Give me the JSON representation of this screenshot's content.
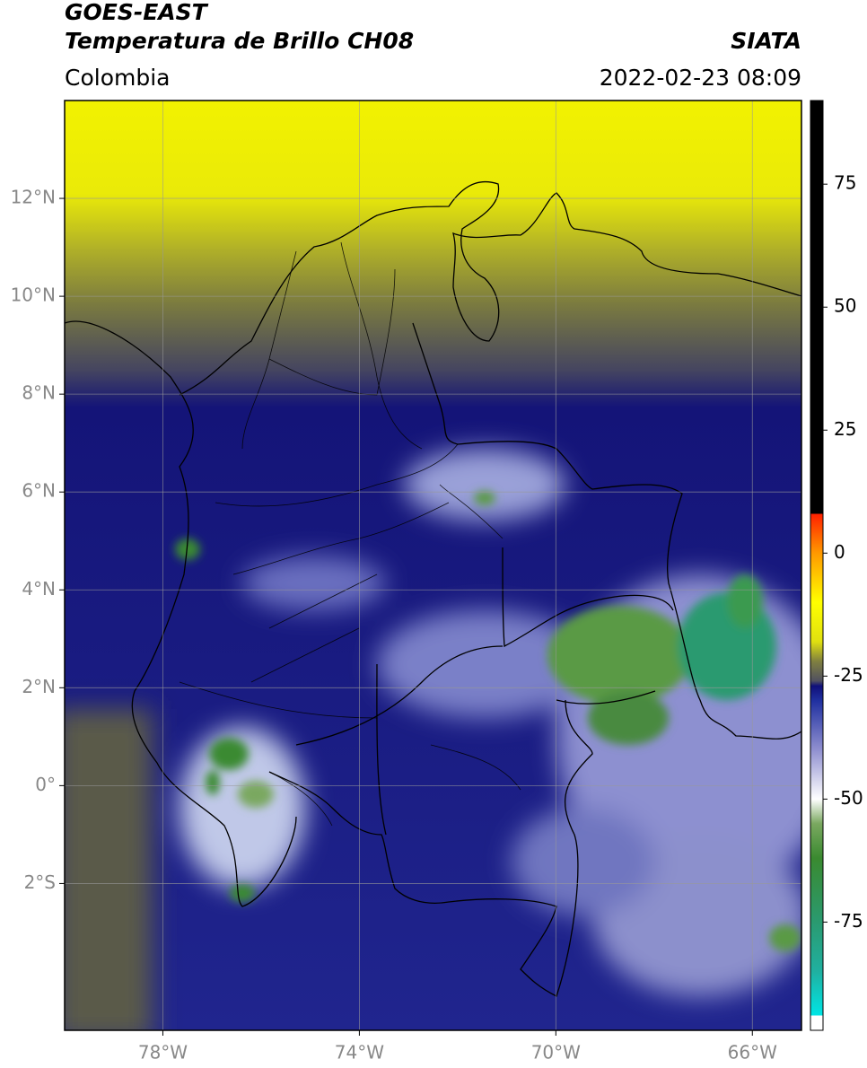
{
  "header": {
    "satellite": "GOES-EAST",
    "product": "Temperatura de Brillo CH08",
    "source": "SIATA",
    "region": "Colombia",
    "datetime": "2022-02-23 08:09"
  },
  "map": {
    "xlim": [
      -80,
      -65
    ],
    "ylim": [
      -5,
      14
    ],
    "xticks": [
      {
        "value": -78,
        "label": "78°W"
      },
      {
        "value": -74,
        "label": "74°W"
      },
      {
        "value": -70,
        "label": "70°W"
      },
      {
        "value": -66,
        "label": "66°W"
      }
    ],
    "yticks": [
      {
        "value": 12,
        "label": "12°N"
      },
      {
        "value": 10,
        "label": "10°N"
      },
      {
        "value": 8,
        "label": "8°N"
      },
      {
        "value": 6,
        "label": "6°N"
      },
      {
        "value": 4,
        "label": "4°N"
      },
      {
        "value": 2,
        "label": "2°N"
      },
      {
        "value": 0,
        "label": "0°"
      },
      {
        "value": -2,
        "label": "2°S"
      }
    ],
    "grid": true
  },
  "colorbar": {
    "clim": [
      -97,
      92
    ],
    "ticks": [
      75,
      50,
      25,
      0,
      -25,
      -50,
      -75
    ],
    "stops": [
      {
        "value": -97,
        "color": "#ffffff"
      },
      {
        "value": -94,
        "color": "#ffffff"
      },
      {
        "value": -94,
        "color": "#00e5e5"
      },
      {
        "value": -85,
        "color": "#20b0a0"
      },
      {
        "value": -75,
        "color": "#2a9a70"
      },
      {
        "value": -62,
        "color": "#3a8a30"
      },
      {
        "value": -55,
        "color": "#7aa860"
      },
      {
        "value": -50,
        "color": "#ffffff"
      },
      {
        "value": -40,
        "color": "#9090d0"
      },
      {
        "value": -30,
        "color": "#2030a0"
      },
      {
        "value": -27,
        "color": "#10107a"
      },
      {
        "value": -26,
        "color": "#505060"
      },
      {
        "value": -22,
        "color": "#808040"
      },
      {
        "value": -18,
        "color": "#e0e010"
      },
      {
        "value": -10,
        "color": "#ffff00"
      },
      {
        "value": 0,
        "color": "#ff9900"
      },
      {
        "value": 8,
        "color": "#ff2000"
      },
      {
        "value": 8,
        "color": "#000000"
      },
      {
        "value": 92,
        "color": "#000000"
      }
    ]
  }
}
